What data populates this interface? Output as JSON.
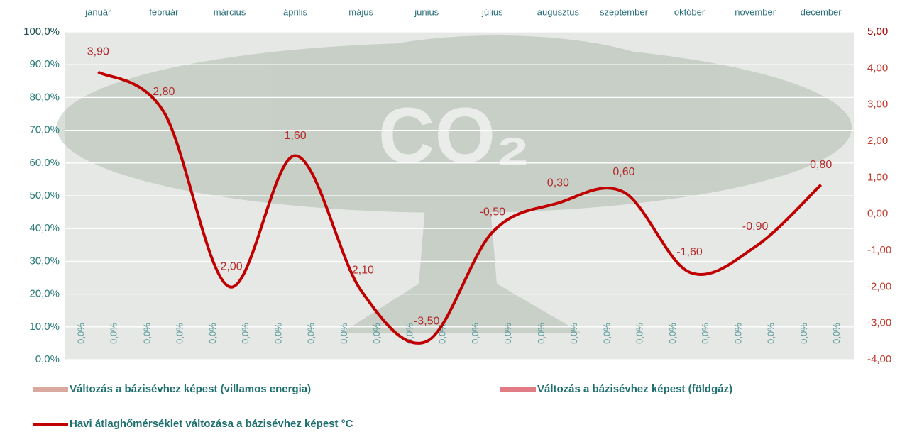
{
  "chart_data": {
    "type": "combo",
    "categories": [
      "január",
      "február",
      "március",
      "április",
      "május",
      "június",
      "július",
      "augusztus",
      "szeptember",
      "október",
      "november",
      "december"
    ],
    "series": [
      {
        "name": "Változás a bázisévhez képest (villamos energia)",
        "type": "bar",
        "color": "#d9a9a0",
        "values": [
          0,
          0,
          0,
          0,
          0,
          0,
          0,
          0,
          0,
          0,
          0,
          0
        ],
        "value_labels": [
          "0,0%",
          "0,0%",
          "0,0%",
          "0,0%",
          "0,0%",
          "0,0%",
          "0,0%",
          "0,0%",
          "0,0%",
          "0,0%",
          "0,0%",
          "0,0%"
        ]
      },
      {
        "name": "Változás a bázisévhez képest (földgáz)",
        "type": "bar",
        "color": "#e27c84",
        "values": [
          0,
          0,
          0,
          0,
          0,
          0,
          0,
          0,
          0,
          0,
          0,
          0
        ],
        "value_labels": [
          "0,0%",
          "0,0%",
          "0,0%",
          "0,0%",
          "0,0%",
          "0,0%",
          "0,0%",
          "0,0%",
          "0,0%",
          "0,0%",
          "0,0%",
          "0,0%"
        ]
      },
      {
        "name": "Havi átlaghőmérséklet változása a bázisévhez képest °C",
        "type": "line",
        "axis": "y2",
        "color": "#c00000",
        "values": [
          3.9,
          2.8,
          -2.0,
          1.6,
          -2.1,
          -3.5,
          -0.5,
          0.3,
          0.6,
          -1.6,
          -0.9,
          0.8
        ],
        "value_labels": [
          "3,90",
          "2,80",
          "-2,00",
          "1,60",
          "-2,10",
          "-3,50",
          "-0,50",
          "0,30",
          "0,60",
          "-1,60",
          "-0,90",
          "0,80"
        ]
      }
    ],
    "ylim": [
      0,
      100
    ],
    "yticks": [
      {
        "value": 0,
        "label": "0,0%"
      },
      {
        "value": 10,
        "label": "10,0%"
      },
      {
        "value": 20,
        "label": "20,0%"
      },
      {
        "value": 30,
        "label": "30,0%"
      },
      {
        "value": 40,
        "label": "40,0%"
      },
      {
        "value": 50,
        "label": "50,0%"
      },
      {
        "value": 60,
        "label": "60,0%"
      },
      {
        "value": 70,
        "label": "70,0%"
      },
      {
        "value": 80,
        "label": "80,0%"
      },
      {
        "value": 90,
        "label": "90,0%"
      },
      {
        "value": 100,
        "label": "100,0%"
      }
    ],
    "y2lim": [
      -4,
      5
    ],
    "y2ticks": [
      {
        "value": -4,
        "label": "-4,00"
      },
      {
        "value": -3,
        "label": "-3,00"
      },
      {
        "value": -2,
        "label": "-2,00"
      },
      {
        "value": -1,
        "label": "-1,00"
      },
      {
        "value": 0,
        "label": "0,00"
      },
      {
        "value": 1,
        "label": "1,00"
      },
      {
        "value": 2,
        "label": "2,00"
      },
      {
        "value": 3,
        "label": "3,00"
      },
      {
        "value": 4,
        "label": "4,00"
      },
      {
        "value": 5,
        "label": "5,00"
      }
    ],
    "grid": true,
    "legend": "bottom"
  }
}
